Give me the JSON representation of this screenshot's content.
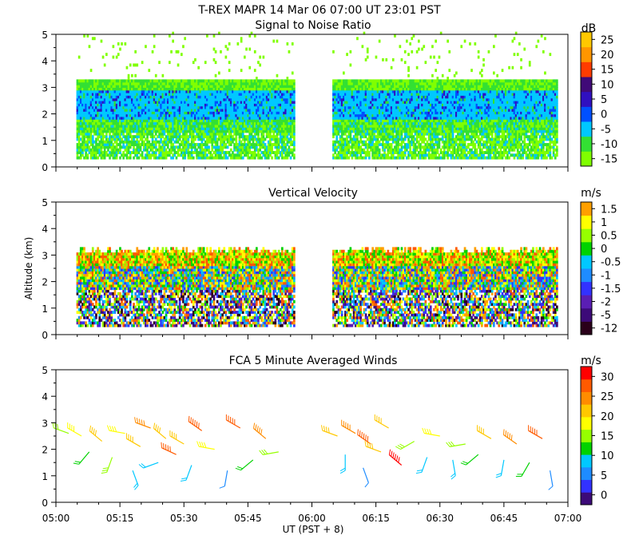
{
  "header": {
    "title": "T-REX   MAPR 14 Mar 06   07:00 UT   23:01   PST"
  },
  "colors": {
    "snr_scale": [
      "#80ff00",
      "#33e033",
      "#00c8ff",
      "#0050ff",
      "#3010c0",
      "#400a78",
      "#ff3c00",
      "#ff9600",
      "#ffc800"
    ],
    "vel_scale": [
      "#2a001a",
      "#3c0a78",
      "#5a1eb4",
      "#3232ff",
      "#1e8cff",
      "#00c8ff",
      "#00d200",
      "#96ff00",
      "#ffff00",
      "#ffa000",
      "#ff5a00",
      "#ff0000"
    ],
    "wind_scale": [
      "#3c0a78",
      "#3232ff",
      "#1e8cff",
      "#00c8ff",
      "#00d200",
      "#96ff00",
      "#ffff00",
      "#ffc800",
      "#ff8c00",
      "#ff5a00",
      "#ff0000"
    ]
  },
  "chart_data": [
    {
      "type": "heatmap",
      "id": "snr",
      "title": "Signal to Noise Ratio",
      "xlabel": "",
      "ylabel": "",
      "x_ticks": [
        "05:00",
        "05:15",
        "05:30",
        "05:45",
        "06:00",
        "06:15",
        "06:30",
        "06:45",
        "07:00"
      ],
      "xlim_hours": [
        5.0,
        7.0
      ],
      "data_gap_hours": [
        5.93,
        6.08
      ],
      "ylim": [
        0,
        5
      ],
      "y_ticks": [
        "0",
        "1",
        "2",
        "3",
        "4",
        "5"
      ],
      "colorbar": {
        "unit": "dB",
        "labels": [
          "25",
          "20",
          "15",
          "10",
          "5",
          "0",
          "-5",
          "-10",
          "-15"
        ]
      },
      "altitude_profile_km": [
        {
          "alt_range": [
            0.3,
            1.3
          ],
          "snr_db": -12
        },
        {
          "alt_range": [
            1.3,
            1.8
          ],
          "snr_db": -10
        },
        {
          "alt_range": [
            1.8,
            2.8
          ],
          "snr_db": -5
        },
        {
          "alt_range": [
            2.8,
            3.2
          ],
          "snr_db": -12
        }
      ]
    },
    {
      "type": "heatmap",
      "id": "vel",
      "title": "Vertical Velocity",
      "xlabel": "",
      "ylabel": "Altitude (km)",
      "x_ticks": [
        "05:00",
        "05:15",
        "05:30",
        "05:45",
        "06:00",
        "06:15",
        "06:30",
        "06:45",
        "07:00"
      ],
      "xlim_hours": [
        5.0,
        7.0
      ],
      "data_gap_hours": [
        5.93,
        6.08
      ],
      "ylim": [
        0,
        5
      ],
      "y_ticks": [
        "0",
        "1",
        "2",
        "3",
        "4",
        "5"
      ],
      "colorbar": {
        "unit": "m/s",
        "labels": [
          "1.5",
          "1",
          "0.5",
          "0",
          "-0.5",
          "-1",
          "-1.5",
          "-2",
          "-5",
          "-12"
        ]
      },
      "altitude_range_km": [
        0.3,
        3.1
      ]
    },
    {
      "type": "scatter",
      "id": "wind",
      "title": "FCA 5 Minute Averaged Winds",
      "xlabel": "UT  (PST + 8)",
      "ylabel": "",
      "x_ticks": [
        "05:00",
        "05:15",
        "05:30",
        "05:45",
        "06:00",
        "06:15",
        "06:30",
        "06:45",
        "07:00"
      ],
      "xlim_hours": [
        5.0,
        7.0
      ],
      "ylim": [
        0,
        5
      ],
      "y_ticks": [
        "0",
        "1",
        "2",
        "3",
        "4",
        "5"
      ],
      "colorbar": {
        "unit": "m/s",
        "labels": [
          "30",
          "25",
          "20",
          "15",
          "10",
          "5",
          "0"
        ]
      },
      "barbs": [
        {
          "t": 5.05,
          "alt": 2.6,
          "speed": 16,
          "dir": 290
        },
        {
          "t": 5.1,
          "alt": 2.5,
          "speed": 18,
          "dir": 300
        },
        {
          "t": 5.13,
          "alt": 1.9,
          "speed": 12,
          "dir": 220
        },
        {
          "t": 5.18,
          "alt": 2.3,
          "speed": 20,
          "dir": 310
        },
        {
          "t": 5.22,
          "alt": 1.7,
          "speed": 14,
          "dir": 200
        },
        {
          "t": 5.27,
          "alt": 2.6,
          "speed": 18,
          "dir": 280
        },
        {
          "t": 5.3,
          "alt": 1.2,
          "speed": 8,
          "dir": 160
        },
        {
          "t": 5.33,
          "alt": 2.1,
          "speed": 22,
          "dir": 300
        },
        {
          "t": 5.37,
          "alt": 2.8,
          "speed": 24,
          "dir": 290
        },
        {
          "t": 5.4,
          "alt": 1.5,
          "speed": 10,
          "dir": 250
        },
        {
          "t": 5.43,
          "alt": 2.4,
          "speed": 20,
          "dir": 310
        },
        {
          "t": 5.47,
          "alt": 1.8,
          "speed": 26,
          "dir": 295
        },
        {
          "t": 5.5,
          "alt": 2.2,
          "speed": 22,
          "dir": 300
        },
        {
          "t": 5.53,
          "alt": 1.4,
          "speed": 9,
          "dir": 200
        },
        {
          "t": 5.57,
          "alt": 2.7,
          "speed": 28,
          "dir": 305
        },
        {
          "t": 5.62,
          "alt": 2.0,
          "speed": 18,
          "dir": 280
        },
        {
          "t": 5.67,
          "alt": 1.2,
          "speed": 7,
          "dir": 190
        },
        {
          "t": 5.72,
          "alt": 2.8,
          "speed": 27,
          "dir": 300
        },
        {
          "t": 5.77,
          "alt": 1.6,
          "speed": 12,
          "dir": 230
        },
        {
          "t": 5.82,
          "alt": 2.4,
          "speed": 24,
          "dir": 310
        },
        {
          "t": 5.87,
          "alt": 1.9,
          "speed": 16,
          "dir": 260
        },
        {
          "t": 6.1,
          "alt": 2.5,
          "speed": 20,
          "dir": 290
        },
        {
          "t": 6.13,
          "alt": 1.8,
          "speed": 8,
          "dir": 180
        },
        {
          "t": 6.17,
          "alt": 2.6,
          "speed": 25,
          "dir": 300
        },
        {
          "t": 6.2,
          "alt": 1.3,
          "speed": 6,
          "dir": 160
        },
        {
          "t": 6.23,
          "alt": 2.2,
          "speed": 28,
          "dir": 305
        },
        {
          "t": 6.27,
          "alt": 1.9,
          "speed": 22,
          "dir": 290
        },
        {
          "t": 6.3,
          "alt": 2.8,
          "speed": 20,
          "dir": 300
        },
        {
          "t": 6.35,
          "alt": 1.4,
          "speed": 29,
          "dir": 310
        },
        {
          "t": 6.4,
          "alt": 2.3,
          "speed": 14,
          "dir": 240
        },
        {
          "t": 6.45,
          "alt": 1.7,
          "speed": 10,
          "dir": 200
        },
        {
          "t": 6.5,
          "alt": 2.5,
          "speed": 18,
          "dir": 280
        },
        {
          "t": 6.55,
          "alt": 1.6,
          "speed": 8,
          "dir": 170
        },
        {
          "t": 6.6,
          "alt": 2.2,
          "speed": 16,
          "dir": 260
        },
        {
          "t": 6.65,
          "alt": 1.8,
          "speed": 12,
          "dir": 230
        },
        {
          "t": 6.7,
          "alt": 2.4,
          "speed": 20,
          "dir": 300
        },
        {
          "t": 6.75,
          "alt": 1.6,
          "speed": 9,
          "dir": 190
        },
        {
          "t": 6.8,
          "alt": 2.2,
          "speed": 24,
          "dir": 305
        },
        {
          "t": 6.85,
          "alt": 1.5,
          "speed": 11,
          "dir": 210
        },
        {
          "t": 6.9,
          "alt": 2.4,
          "speed": 26,
          "dir": 300
        },
        {
          "t": 6.93,
          "alt": 1.2,
          "speed": 7,
          "dir": 170
        }
      ]
    }
  ]
}
